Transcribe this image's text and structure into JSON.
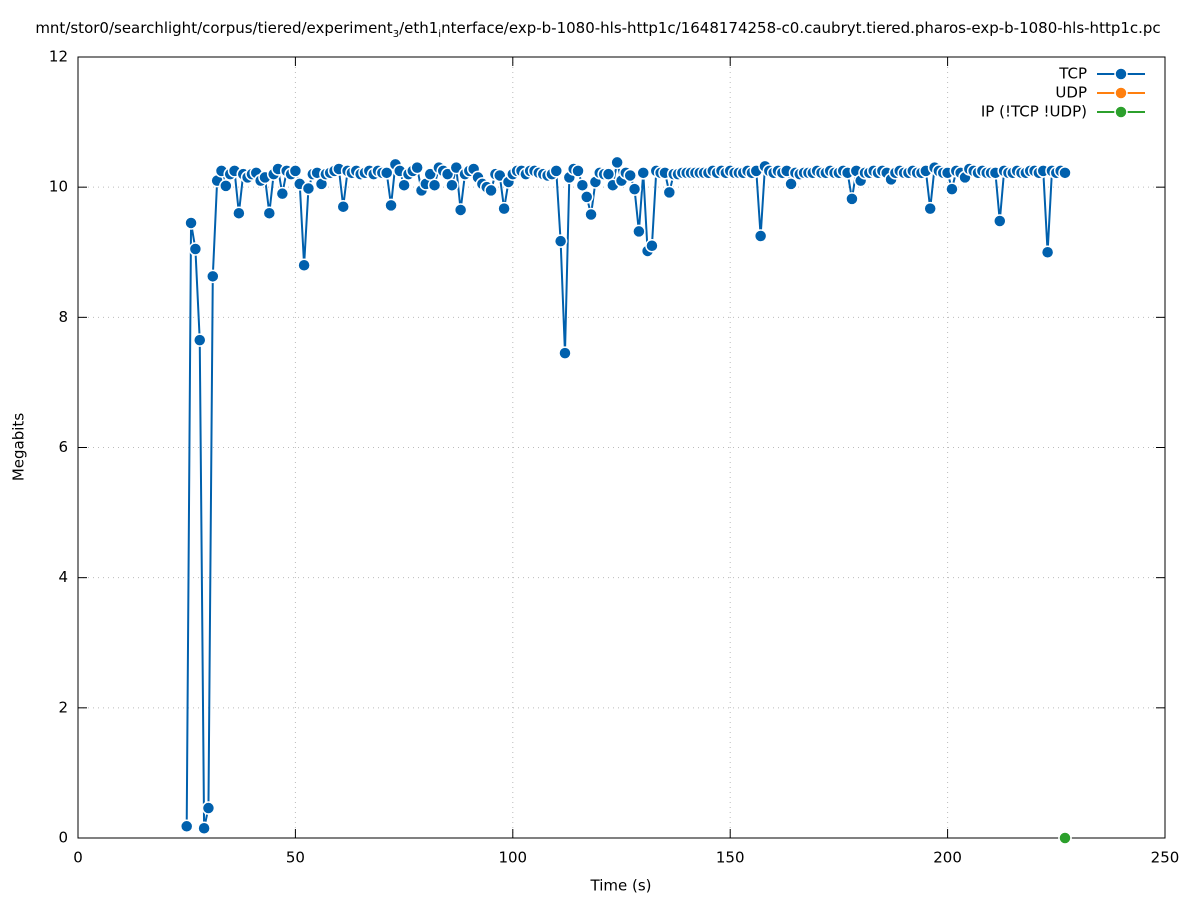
{
  "chart_data": {
    "type": "line",
    "title": [
      "mnt/stor0/searchlight/corpus/tiered/experiment",
      "3",
      "/eth1",
      "i",
      "nterface/exp-b-1080-hls-http1c/1648174258-c0.caubryt.tiered.pharos-exp-b-1080-hls-http1c.pc"
    ],
    "xlabel": "Time (s)",
    "ylabel": "Megabits",
    "xlim": [
      0,
      250
    ],
    "xticks": [
      0,
      50,
      100,
      150,
      200,
      250
    ],
    "ylim": [
      0,
      12
    ],
    "yticks": [
      0,
      2,
      4,
      6,
      8,
      10,
      12
    ],
    "grid": true,
    "legend": "top-right",
    "series": [
      {
        "name": "TCP",
        "color": "#0060ad",
        "x": [
          25,
          26,
          27,
          28,
          29,
          30,
          31,
          32,
          33,
          34,
          35,
          36,
          37,
          38,
          39,
          40,
          41,
          42,
          43,
          44,
          45,
          46,
          47,
          48,
          49,
          50,
          51,
          52,
          53,
          54,
          55,
          56,
          57,
          58,
          59,
          60,
          61,
          62,
          63,
          64,
          65,
          66,
          67,
          68,
          69,
          70,
          71,
          72,
          73,
          74,
          75,
          76,
          77,
          78,
          79,
          80,
          81,
          82,
          83,
          84,
          85,
          86,
          87,
          88,
          89,
          90,
          91,
          92,
          93,
          94,
          95,
          96,
          97,
          98,
          99,
          100,
          101,
          102,
          103,
          104,
          105,
          106,
          107,
          108,
          109,
          110,
          111,
          112,
          113,
          114,
          115,
          116,
          117,
          118,
          119,
          120,
          121,
          122,
          123,
          124,
          125,
          126,
          127,
          128,
          129,
          130,
          131,
          132,
          133,
          134,
          135,
          136,
          137,
          138,
          139,
          140,
          141,
          142,
          143,
          144,
          145,
          146,
          147,
          148,
          149,
          150,
          151,
          152,
          153,
          154,
          155,
          156,
          157,
          158,
          159,
          160,
          161,
          162,
          163,
          164,
          165,
          166,
          167,
          168,
          169,
          170,
          171,
          172,
          173,
          174,
          175,
          176,
          177,
          178,
          179,
          180,
          181,
          182,
          183,
          184,
          185,
          186,
          187,
          188,
          189,
          190,
          191,
          192,
          193,
          194,
          195,
          196,
          197,
          198,
          199,
          200,
          201,
          202,
          203,
          204,
          205,
          206,
          207,
          208,
          209,
          210,
          211,
          212,
          213,
          214,
          215,
          216,
          217,
          218,
          219,
          220,
          221,
          222,
          223,
          224,
          225,
          226,
          227
        ],
        "values": [
          0.18,
          9.45,
          9.05,
          7.65,
          0.15,
          0.46,
          8.63,
          10.1,
          10.25,
          10.02,
          10.2,
          10.25,
          9.6,
          10.2,
          10.15,
          10.2,
          10.22,
          10.1,
          10.15,
          9.6,
          10.2,
          10.28,
          9.9,
          10.25,
          10.2,
          10.25,
          10.05,
          8.8,
          9.98,
          10.2,
          10.22,
          10.05,
          10.2,
          10.22,
          10.25,
          10.28,
          9.7,
          10.25,
          10.22,
          10.25,
          10.2,
          10.22,
          10.25,
          10.2,
          10.25,
          10.22,
          10.22,
          9.72,
          10.35,
          10.25,
          10.03,
          10.2,
          10.25,
          10.3,
          9.95,
          10.05,
          10.2,
          10.03,
          10.3,
          10.25,
          10.2,
          10.03,
          10.3,
          9.65,
          10.2,
          10.25,
          10.28,
          10.15,
          10.05,
          10.0,
          9.95,
          10.2,
          10.18,
          9.67,
          10.08,
          10.2,
          10.25,
          10.25,
          10.2,
          10.25,
          10.25,
          10.22,
          10.2,
          10.18,
          10.2,
          10.25,
          9.17,
          7.45,
          10.15,
          10.28,
          10.25,
          10.03,
          9.85,
          9.58,
          10.08,
          10.22,
          10.2,
          10.2,
          10.03,
          10.38,
          10.1,
          10.22,
          10.18,
          9.97,
          9.32,
          10.22,
          9.02,
          9.1,
          10.25,
          10.22,
          10.22,
          9.92,
          10.2,
          10.2,
          10.22,
          10.22,
          10.22,
          10.22,
          10.22,
          10.22,
          10.22,
          10.25,
          10.22,
          10.25,
          10.22,
          10.25,
          10.22,
          10.22,
          10.22,
          10.25,
          10.22,
          10.25,
          9.25,
          10.32,
          10.25,
          10.22,
          10.25,
          10.22,
          10.25,
          10.05,
          10.22,
          10.2,
          10.22,
          10.22,
          10.22,
          10.25,
          10.22,
          10.22,
          10.25,
          10.22,
          10.22,
          10.25,
          10.22,
          9.82,
          10.25,
          10.1,
          10.22,
          10.22,
          10.25,
          10.22,
          10.25,
          10.22,
          10.12,
          10.22,
          10.25,
          10.22,
          10.22,
          10.25,
          10.22,
          10.22,
          10.25,
          9.67,
          10.3,
          10.25,
          10.22,
          10.22,
          9.97,
          10.25,
          10.22,
          10.15,
          10.28,
          10.25,
          10.22,
          10.25,
          10.22,
          10.22,
          10.22,
          9.48,
          10.25,
          10.22,
          10.22,
          10.25,
          10.22,
          10.22,
          10.25,
          10.25,
          10.22,
          10.25,
          9.0,
          10.25,
          10.22,
          10.25,
          10.22
        ]
      },
      {
        "name": "UDP",
        "color": "#ff7f0e",
        "x": [
          227
        ],
        "values": [
          0
        ]
      },
      {
        "name": "IP (!TCP  !UDP)",
        "color": "#2ca02c",
        "x": [
          227
        ],
        "values": [
          0
        ]
      }
    ]
  }
}
